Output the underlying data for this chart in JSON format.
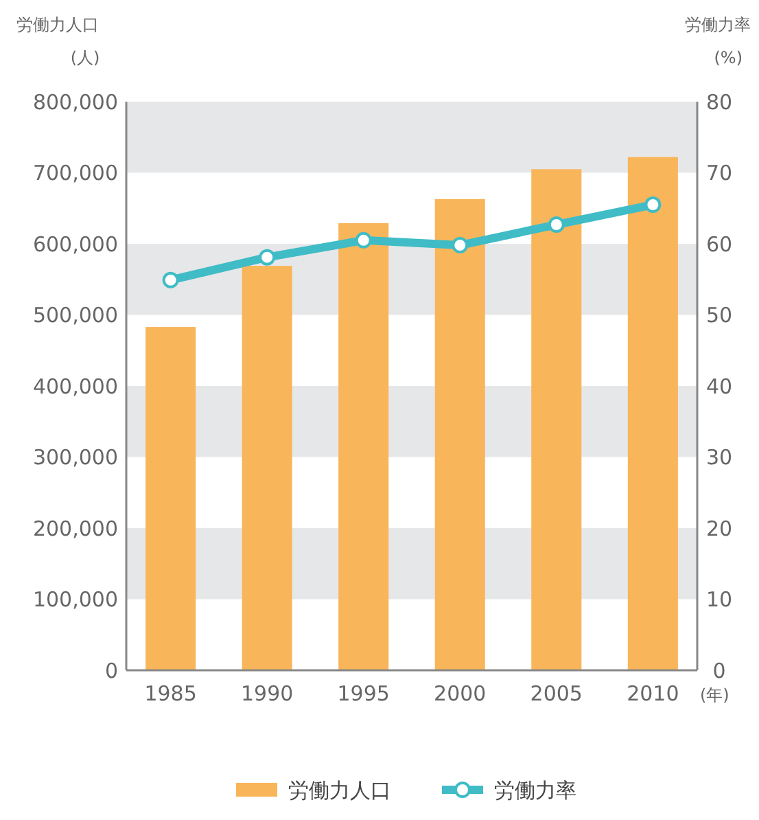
{
  "chart_data": {
    "type": "bar",
    "categories": [
      "1985",
      "1990",
      "1995",
      "2000",
      "2005",
      "2010"
    ],
    "xlabel": "(年)",
    "ylabel": "労働力人口\n(人)",
    "y2label": "労働力率\n(%)",
    "series": [
      {
        "name": "労働力人口",
        "color": "#f9b55a",
        "values": [
          483000,
          569000,
          629000,
          663000,
          705000,
          722000
        ]
      },
      {
        "name": "労働力率",
        "type": "line",
        "axis": "y2",
        "color": "#3fbcc6",
        "marker": "circle",
        "values": [
          54.9,
          58.1,
          60.5,
          59.8,
          62.7,
          65.5
        ]
      }
    ],
    "ylim": [
      0,
      800000
    ],
    "yticks": [
      {
        "value": 0,
        "label": "0"
      },
      {
        "value": 100000,
        "label": "100,000"
      },
      {
        "value": 200000,
        "label": "200,000"
      },
      {
        "value": 300000,
        "label": "300,000"
      },
      {
        "value": 400000,
        "label": "400,000"
      },
      {
        "value": 500000,
        "label": "500,000"
      },
      {
        "value": 600000,
        "label": "600,000"
      },
      {
        "value": 700000,
        "label": "700,000"
      },
      {
        "value": 800000,
        "label": "800,000"
      }
    ],
    "y2lim": [
      0,
      80
    ],
    "y2ticks": [
      0,
      10,
      20,
      30,
      40,
      50,
      60,
      70,
      80
    ],
    "bands": [
      {
        "axis": "y",
        "from": 100000,
        "to": 200000,
        "color": "#e6e7e9"
      },
      {
        "axis": "y",
        "from": 300000,
        "to": 400000,
        "color": "#e6e7e9"
      },
      {
        "axis": "y",
        "from": 500000,
        "to": 600000,
        "color": "#e6e7e9"
      },
      {
        "axis": "y",
        "from": 700000,
        "to": 800000,
        "color": "#e6e7e9"
      }
    ],
    "legend": "bottom"
  }
}
